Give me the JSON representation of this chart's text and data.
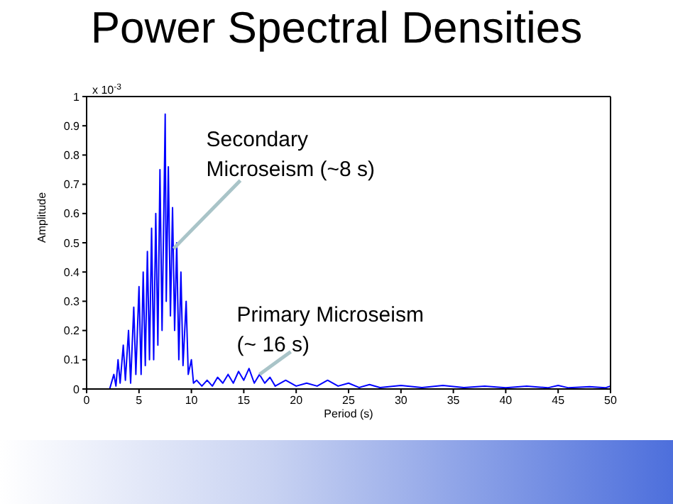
{
  "chart_data": {
    "type": "line",
    "title": "Power Spectral Densities",
    "xlabel": "Period (s)",
    "ylabel": "Amplitude",
    "annotations": [
      "x 10$^{-3}$",
      {
        "text": "Secondary\nMicroseism (~8 s)",
        "x": 8.3,
        "y": 0.48
      },
      {
        "text": "Primary Microseism\n(~ 16 s)",
        "x": 16.5,
        "y": 0.05
      }
    ],
    "series": [
      {
        "color": "#0000ff",
        "x": [
          2.2,
          2.6,
          2.8,
          3.0,
          3.2,
          3.5,
          3.7,
          4.0,
          4.2,
          4.5,
          4.7,
          5.0,
          5.2,
          5.4,
          5.6,
          5.8,
          6.0,
          6.2,
          6.4,
          6.6,
          6.8,
          7.0,
          7.2,
          7.4,
          7.5,
          7.6,
          7.8,
          8.0,
          8.2,
          8.4,
          8.6,
          8.8,
          9.0,
          9.2,
          9.5,
          9.7,
          10.0,
          10.2,
          10.5,
          11,
          11.5,
          12,
          12.5,
          13,
          13.5,
          14,
          14.5,
          15,
          15.5,
          16,
          16.5,
          17,
          17.5,
          18,
          19,
          20,
          21,
          22,
          23,
          24,
          25,
          26,
          27,
          28,
          30,
          32,
          34,
          36,
          38,
          40,
          42,
          44,
          45,
          46,
          48,
          49.5,
          50
        ],
        "values": [
          0,
          0.05,
          0.01,
          0.1,
          0.02,
          0.15,
          0.03,
          0.2,
          0.02,
          0.28,
          0.05,
          0.35,
          0.05,
          0.4,
          0.08,
          0.47,
          0.1,
          0.55,
          0.1,
          0.6,
          0.15,
          0.75,
          0.2,
          0.68,
          0.94,
          0.3,
          0.76,
          0.25,
          0.62,
          0.2,
          0.5,
          0.1,
          0.4,
          0.08,
          0.3,
          0.05,
          0.1,
          0.02,
          0.03,
          0.01,
          0.03,
          0.01,
          0.04,
          0.02,
          0.05,
          0.02,
          0.06,
          0.03,
          0.07,
          0.02,
          0.05,
          0.02,
          0.04,
          0.01,
          0.03,
          0.01,
          0.02,
          0.01,
          0.03,
          0.01,
          0.02,
          0.005,
          0.015,
          0.005,
          0.012,
          0.005,
          0.012,
          0.005,
          0.01,
          0.004,
          0.01,
          0.004,
          0.012,
          0.004,
          0.008,
          0.004,
          0.01
        ]
      }
    ],
    "xlim": [
      0,
      50
    ],
    "xticks": [
      0,
      5,
      10,
      15,
      20,
      25,
      30,
      35,
      40,
      45,
      50
    ],
    "ylim": [
      0,
      1
    ],
    "yticks": [
      0,
      0.1,
      0.2,
      0.3,
      0.4,
      0.5,
      0.6,
      0.7,
      0.8,
      0.9,
      1
    ],
    "grid": false,
    "marker": "none",
    "line_style": "solid"
  }
}
